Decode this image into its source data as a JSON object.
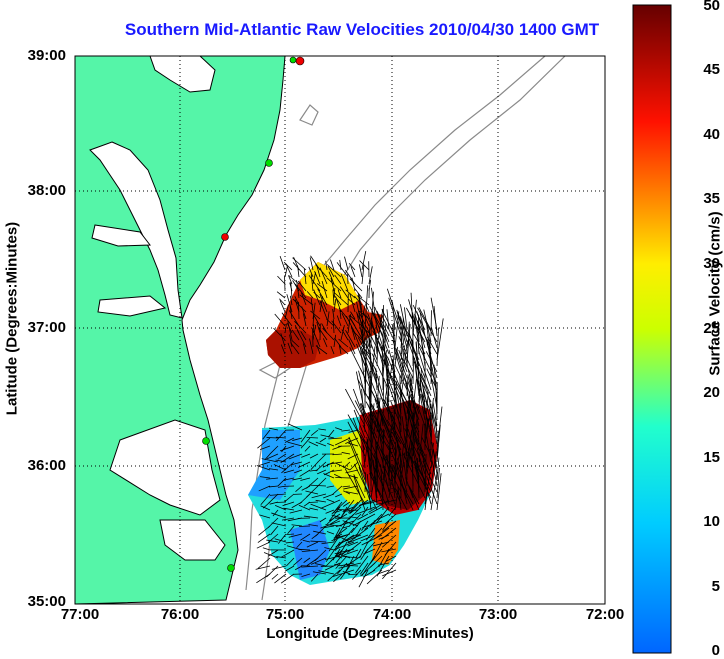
{
  "title": "Southern Mid-Atlantic Raw Velocities 2010/04/30 1400 GMT",
  "axes": {
    "xlabel": "Longitude (Degrees:Minutes)",
    "ylabel": "Latitude (Degrees:Minutes)",
    "xticks": [
      "77:00",
      "76:00",
      "75:00",
      "74:00",
      "73:00",
      "72:00"
    ],
    "yticks": [
      "39:00",
      "38:00",
      "37:00",
      "36:00",
      "35:00"
    ]
  },
  "colorbar": {
    "label": "Surface Velocity (cm/s)",
    "ticks": [
      "50",
      "45",
      "40",
      "35",
      "30",
      "25",
      "20",
      "15",
      "10",
      "5",
      "0"
    ],
    "range": [
      0,
      50
    ]
  },
  "colors": {
    "land": "#55f5a8",
    "ocean": "#ffffff",
    "coast": "#000000",
    "bathymetry": "#8a8a8a",
    "title": "#1a1aff",
    "station_green": "#00dd00",
    "station_red": "#ee0000"
  }
}
